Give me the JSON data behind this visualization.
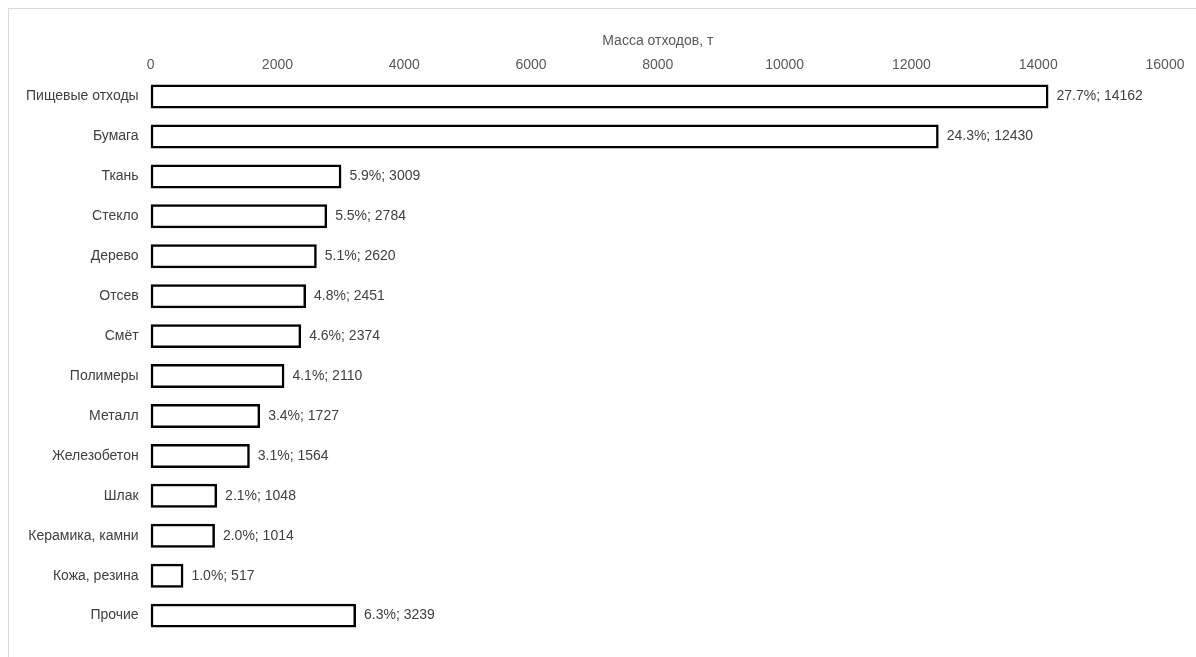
{
  "chart_data": {
    "type": "bar",
    "orientation": "horizontal",
    "xlabel": "Масса отходов, т",
    "categories": [
      "Пищевые отходы",
      "Бумага",
      "Ткань",
      "Стекло",
      "Дерево",
      "Отсев",
      "Смёт",
      "Полимеры",
      "Металл",
      "Железобетон",
      "Шлак",
      "Керамика, камни",
      "Кожа, резина",
      "Прочие"
    ],
    "values": [
      14162,
      12430,
      3009,
      2784,
      2620,
      2451,
      2374,
      2110,
      1727,
      1564,
      1048,
      1014,
      517,
      3239
    ],
    "value_labels": [
      "27.7%; 14162",
      "24.3%; 12430",
      "5.9%; 3009",
      "5.5%; 2784",
      "5.1%; 2620",
      "4.8%; 2451",
      "4.6%; 2374",
      "4.1%; 2110",
      "3.4%; 1727",
      "3.1%; 1564",
      "2.1%; 1048",
      "2.0%; 1014",
      "1.0%; 517",
      "6.3%; 3239"
    ],
    "color": "#000000",
    "xlim": [
      0,
      16000
    ],
    "xticks": [
      0,
      2000,
      4000,
      6000,
      8000,
      10000,
      12000,
      14000,
      16000
    ]
  }
}
